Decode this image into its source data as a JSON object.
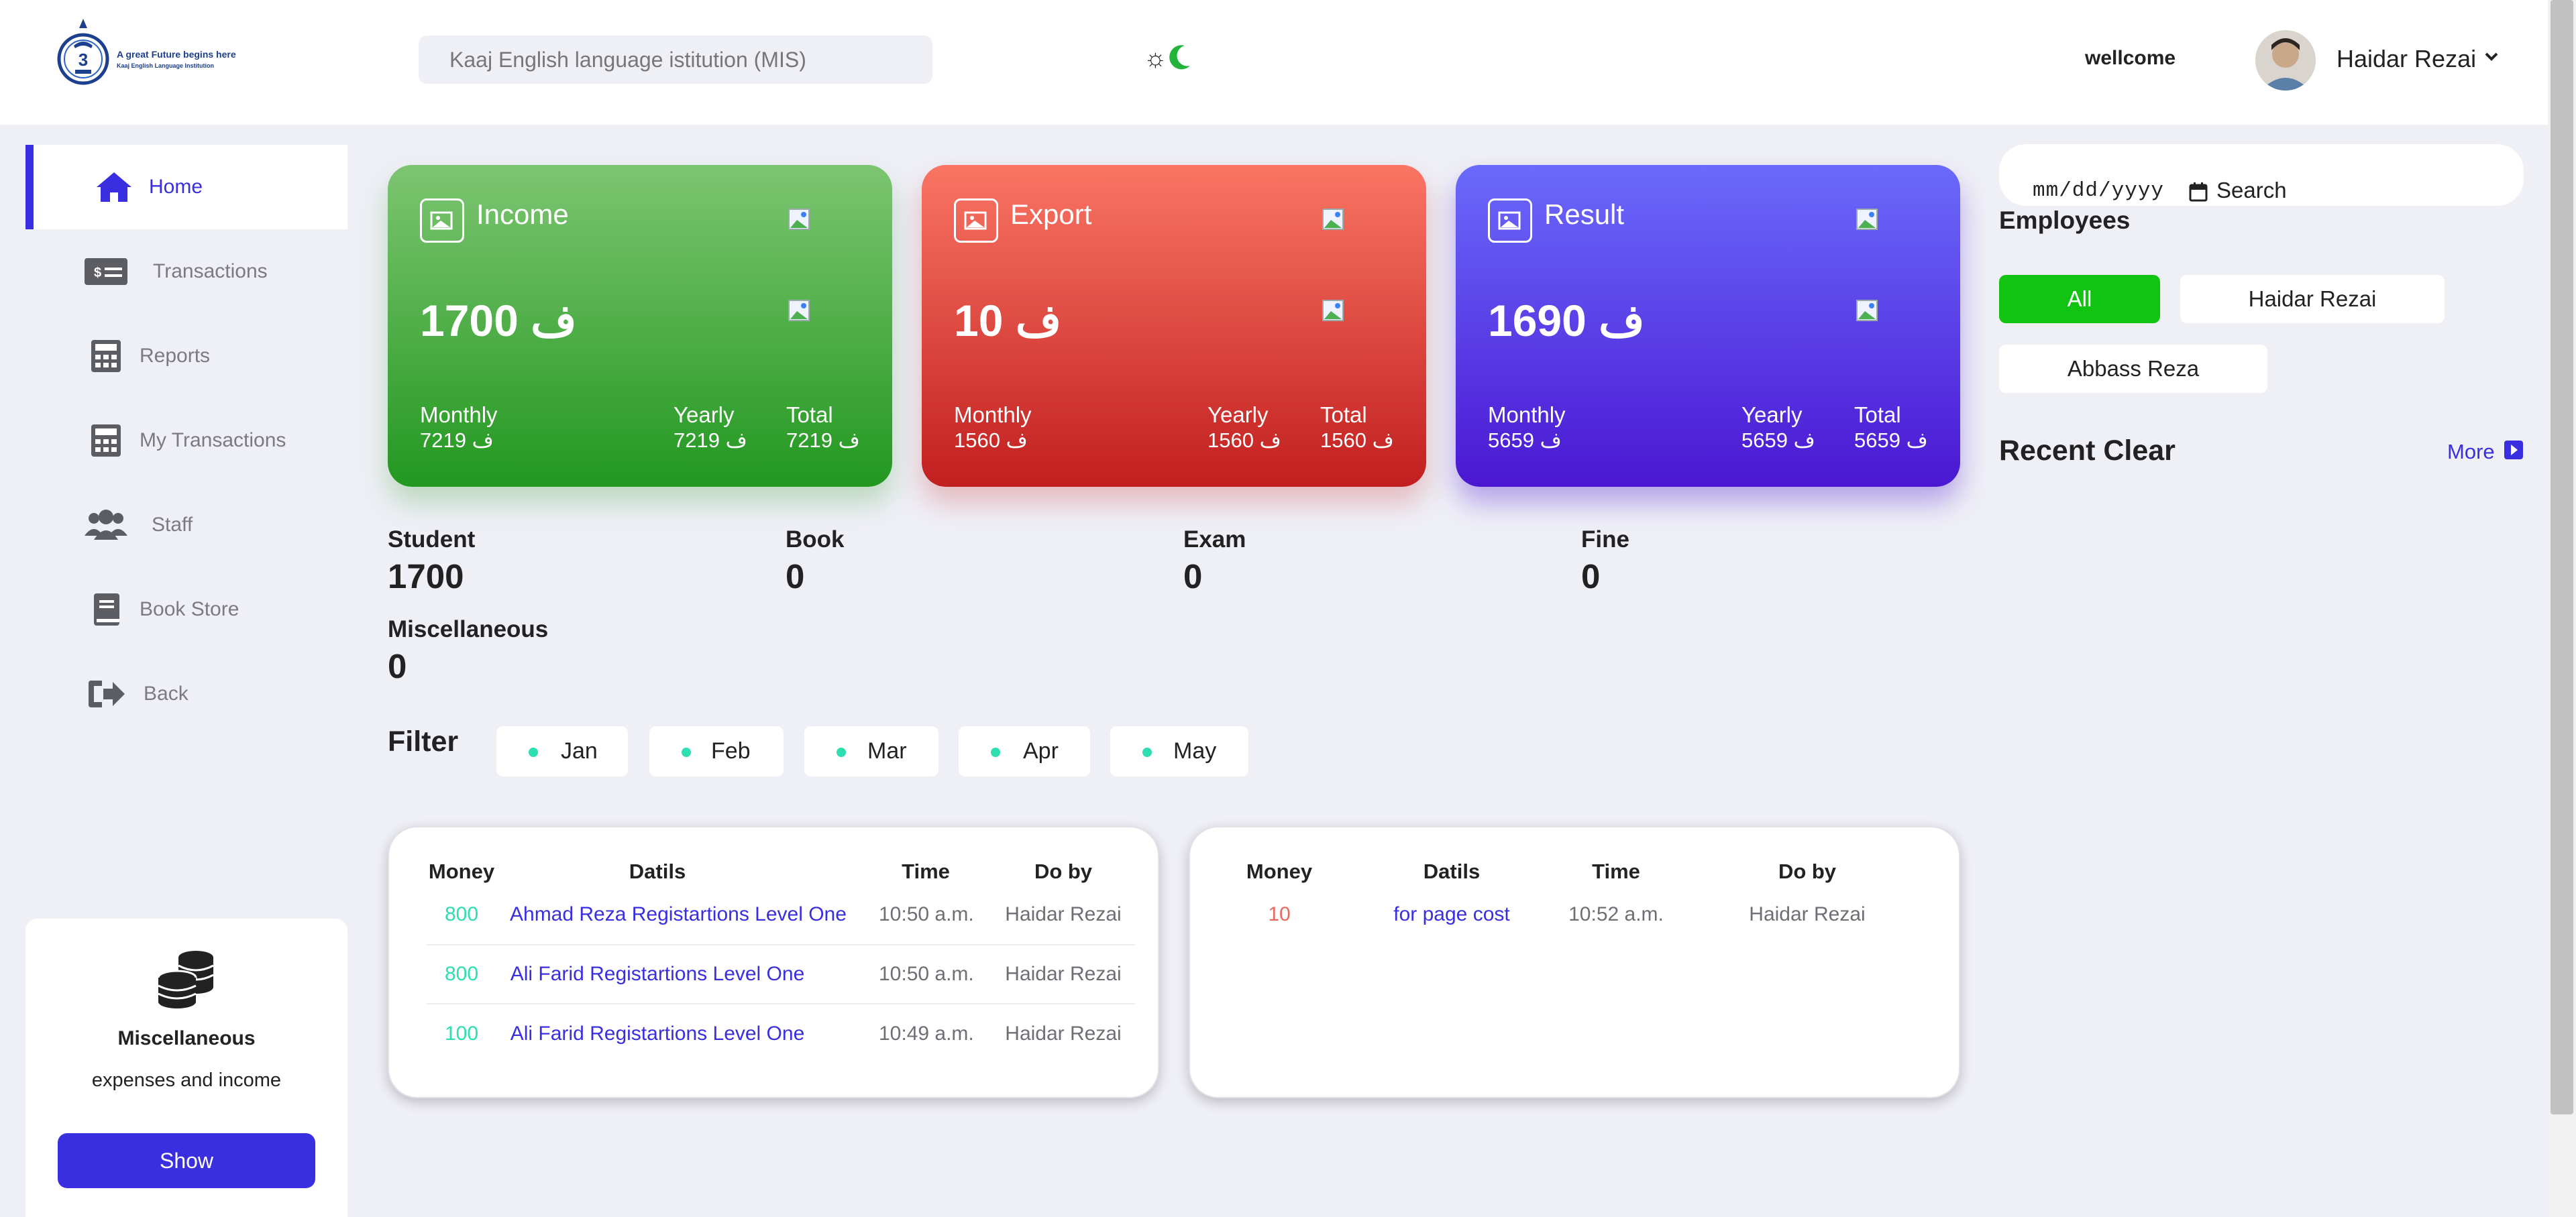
{
  "brand": {
    "logo_tagline": "A great Future begins here",
    "logo_subtitle": "Kaaj English Language Institution"
  },
  "header": {
    "search_placeholder": "Kaaj English language istitution (MIS)",
    "welcome": "wellcome",
    "user_name": "Haidar Rezai"
  },
  "sidebar": {
    "items": [
      {
        "label": "Home",
        "icon": "home-icon",
        "active": true
      },
      {
        "label": "Transactions",
        "icon": "money-bill-icon"
      },
      {
        "label": "Reports",
        "icon": "calculator-icon"
      },
      {
        "label": "My Transactions",
        "icon": "calculator-icon"
      },
      {
        "label": "Staff",
        "icon": "users-icon"
      },
      {
        "label": "Book Store",
        "icon": "book-icon"
      },
      {
        "label": "Back",
        "icon": "sign-out-icon"
      }
    ],
    "misc_card": {
      "icon": "coins-icon",
      "title": "Miscellaneous",
      "subtitle": "expenses and income",
      "button": "Show"
    }
  },
  "cards": [
    {
      "title": "Income",
      "amount": "1700 ف",
      "monthly_label": "Monthly",
      "monthly": "7219 ف",
      "yearly_label": "Yearly",
      "yearly": "7219 ف",
      "total_label": "Total",
      "total": "7219 ف",
      "color": "#229820"
    },
    {
      "title": "Export",
      "amount": "10 ف",
      "monthly_label": "Monthly",
      "monthly": "1560 ف",
      "yearly_label": "Yearly",
      "yearly": "1560 ف",
      "total_label": "Total",
      "total": "1560 ف",
      "color": "#c11f1f"
    },
    {
      "title": "Result",
      "amount": "1690 ف",
      "monthly_label": "Monthly",
      "monthly": "5659 ف",
      "yearly_label": "Yearly",
      "yearly": "5659 ف",
      "total_label": "Total",
      "total": "5659 ف",
      "color": "#4b17d2"
    }
  ],
  "counters": [
    {
      "label": "Student",
      "value": "1700"
    },
    {
      "label": "Book",
      "value": "0"
    },
    {
      "label": "Exam",
      "value": "0"
    },
    {
      "label": "Fine",
      "value": "0"
    },
    {
      "label": "Miscellaneous",
      "value": "0"
    }
  ],
  "filter": {
    "label": "Filter",
    "months": [
      "Jan",
      "Feb",
      "Mar",
      "Apr",
      "May"
    ]
  },
  "income_table": {
    "headers": [
      "Money",
      "Datils",
      "Time",
      "Do by"
    ],
    "rows": [
      {
        "money": "800",
        "details": "Ahmad Reza Registartions Level One",
        "time": "10:50 a.m.",
        "by": "Haidar Rezai"
      },
      {
        "money": "800",
        "details": "Ali Farid Registartions Level One",
        "time": "10:50 a.m.",
        "by": "Haidar Rezai"
      },
      {
        "money": "100",
        "details": "Ali Farid Registartions Level One",
        "time": "10:49 a.m.",
        "by": "Haidar Rezai"
      }
    ]
  },
  "expense_table": {
    "headers": [
      "Money",
      "Datils",
      "Time",
      "Do by"
    ],
    "rows": [
      {
        "money": "10",
        "details": "for page cost",
        "time": "10:52 a.m.",
        "by": "Haidar Rezai"
      }
    ]
  },
  "right_panel": {
    "date_placeholder": "mm/dd/yyyy",
    "search_button": "Search",
    "employees_title": "Employees",
    "employees": [
      "All",
      "Haidar Rezai",
      "Abbass Reza"
    ],
    "recent_title": "Recent Clear",
    "more_link": "More"
  },
  "colors": {
    "accent": "#3a2fe0",
    "income_green": "#2ddfb0",
    "expense_red": "#e7695b",
    "all_button": "#12c412"
  }
}
